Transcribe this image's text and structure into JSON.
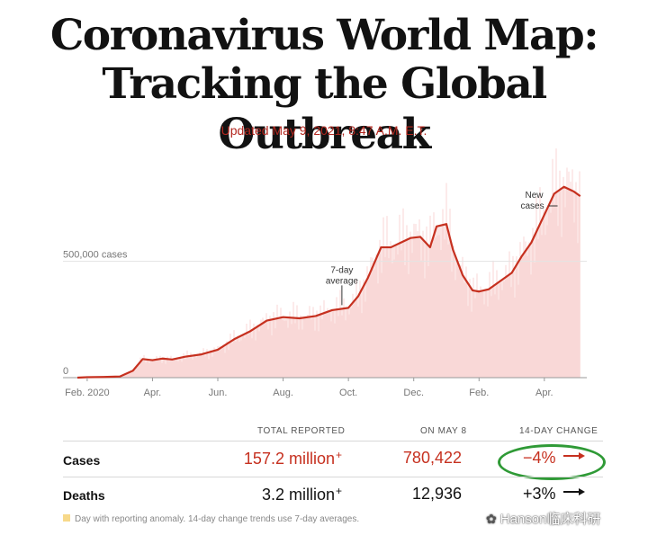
{
  "header": {
    "title_line1": "Coronavirus World Map:",
    "title_line2": "Tracking the Global Outbreak",
    "updated": "Updated May 9, 2021, 8:47 A.M. E.T."
  },
  "colors": {
    "accent_red": "#c6301f",
    "bar_fill": "#f6c6c4",
    "area_fill": "#fbe3e2",
    "annotation_green": "#2f9a36"
  },
  "chart_data": {
    "type": "area",
    "x_unit": "months since Feb. 2020",
    "xticks": [
      {
        "x": 0,
        "label": "Feb. 2020"
      },
      {
        "x": 2,
        "label": "Apr."
      },
      {
        "x": 4,
        "label": "Jun."
      },
      {
        "x": 6,
        "label": "Aug."
      },
      {
        "x": 8,
        "label": "Oct."
      },
      {
        "x": 10,
        "label": "Dec."
      },
      {
        "x": 12,
        "label": "Feb."
      },
      {
        "x": 14,
        "label": "Apr."
      }
    ],
    "yticks": [
      {
        "y": 0,
        "label": "0"
      },
      {
        "y": 500000,
        "label": "500,000 cases"
      }
    ],
    "ylim": [
      0,
      850000
    ],
    "xlim": [
      -0.3,
      15.3
    ],
    "series": [
      {
        "name": "7-day average",
        "x": [
          -0.3,
          0.0,
          0.5,
          1.0,
          1.4,
          1.7,
          2.0,
          2.3,
          2.6,
          3.0,
          3.5,
          4.0,
          4.5,
          5.0,
          5.5,
          6.0,
          6.5,
          7.0,
          7.5,
          8.0,
          8.3,
          8.6,
          9.0,
          9.3,
          9.6,
          9.9,
          10.2,
          10.5,
          10.7,
          11.0,
          11.2,
          11.5,
          11.8,
          12.0,
          12.3,
          12.6,
          13.0,
          13.3,
          13.6,
          14.0,
          14.3,
          14.6,
          14.9,
          15.1
        ],
        "y": [
          0,
          2000,
          3000,
          5000,
          30000,
          80000,
          75000,
          82000,
          78000,
          90000,
          100000,
          120000,
          165000,
          200000,
          245000,
          260000,
          255000,
          265000,
          290000,
          300000,
          350000,
          430000,
          560000,
          560000,
          580000,
          600000,
          605000,
          560000,
          650000,
          660000,
          550000,
          440000,
          375000,
          370000,
          380000,
          410000,
          450000,
          520000,
          580000,
          700000,
          790000,
          820000,
          800000,
          780000
        ]
      }
    ],
    "annotations": [
      "7-day average",
      "New cases"
    ]
  },
  "chart_text": {
    "avg_label_1": "7-day",
    "avg_label_2": "average",
    "new_label_1": "New",
    "new_label_2": "cases"
  },
  "table": {
    "headers": {
      "total": "TOTAL REPORTED",
      "on_date": "ON MAY 8",
      "change": "14-DAY CHANGE"
    },
    "rows": [
      {
        "label": "Cases",
        "total": "157.2 million",
        "on_date": "780,422",
        "change": "−4%",
        "direction": "down"
      },
      {
        "label": "Deaths",
        "total": "3.2 million",
        "on_date": "12,936",
        "change": "+3%",
        "direction": "up"
      }
    ],
    "plus_marker": "+"
  },
  "footnote": "Day with reporting anomaly. 14-day change trends use 7-day averages.",
  "watermark": "Hanson临床科研"
}
